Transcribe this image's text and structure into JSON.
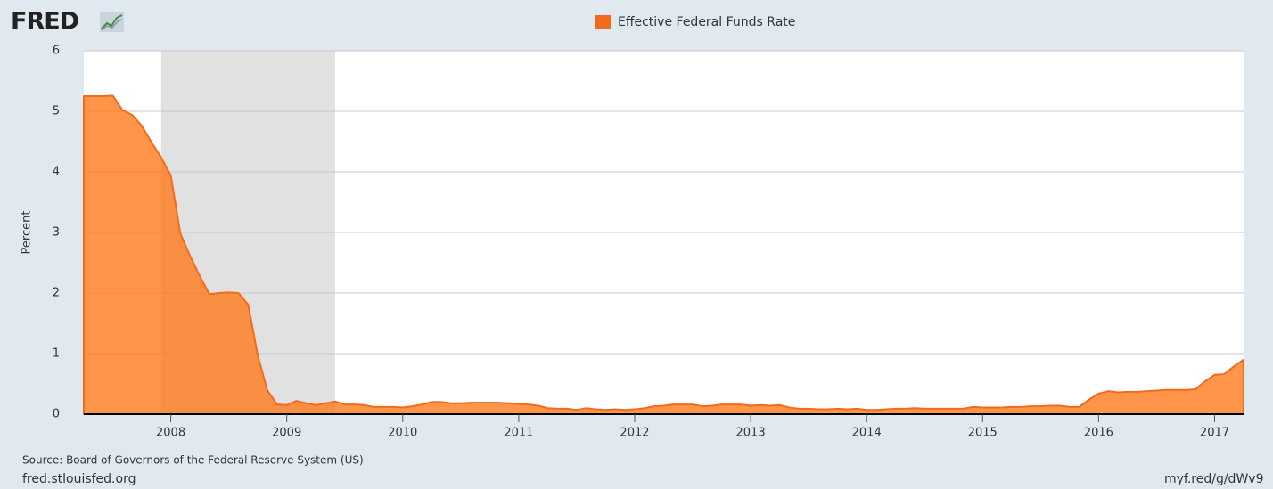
{
  "chart_data": {
    "type": "area",
    "logo": "FRED",
    "series": [
      {
        "name": "Effective Federal Funds Rate",
        "color": "#f26b1d",
        "x": [
          2007.25,
          2007.333,
          2007.417,
          2007.5,
          2007.583,
          2007.667,
          2007.75,
          2007.833,
          2007.917,
          2008,
          2008.083,
          2008.167,
          2008.25,
          2008.333,
          2008.417,
          2008.5,
          2008.583,
          2008.667,
          2008.75,
          2008.833,
          2008.917,
          2009,
          2009.083,
          2009.167,
          2009.25,
          2009.333,
          2009.417,
          2009.5,
          2009.583,
          2009.667,
          2009.75,
          2009.833,
          2009.917,
          2010,
          2010.083,
          2010.167,
          2010.25,
          2010.333,
          2010.417,
          2010.5,
          2010.583,
          2010.667,
          2010.75,
          2010.833,
          2010.917,
          2011,
          2011.083,
          2011.167,
          2011.25,
          2011.333,
          2011.417,
          2011.5,
          2011.583,
          2011.667,
          2011.75,
          2011.833,
          2011.917,
          2012,
          2012.083,
          2012.167,
          2012.25,
          2012.333,
          2012.417,
          2012.5,
          2012.583,
          2012.667,
          2012.75,
          2012.833,
          2012.917,
          2013,
          2013.083,
          2013.167,
          2013.25,
          2013.333,
          2013.417,
          2013.5,
          2013.583,
          2013.667,
          2013.75,
          2013.833,
          2013.917,
          2014,
          2014.083,
          2014.167,
          2014.25,
          2014.333,
          2014.417,
          2014.5,
          2014.583,
          2014.667,
          2014.75,
          2014.833,
          2014.917,
          2015,
          2015.083,
          2015.167,
          2015.25,
          2015.333,
          2015.417,
          2015.5,
          2015.583,
          2015.667,
          2015.75,
          2015.833,
          2015.917,
          2016,
          2016.083,
          2016.167,
          2016.25,
          2016.333,
          2016.417,
          2016.5,
          2016.583,
          2016.667,
          2016.75,
          2016.833,
          2016.917,
          2017,
          2017.083,
          2017.167,
          2017.25
        ],
        "values": [
          5.25,
          5.25,
          5.25,
          5.26,
          5.02,
          4.94,
          4.76,
          4.49,
          4.24,
          3.94,
          2.98,
          2.61,
          2.28,
          1.98,
          2.0,
          2.01,
          2.0,
          1.81,
          0.97,
          0.39,
          0.16,
          0.15,
          0.22,
          0.18,
          0.15,
          0.18,
          0.21,
          0.16,
          0.16,
          0.15,
          0.12,
          0.12,
          0.12,
          0.11,
          0.13,
          0.16,
          0.2,
          0.2,
          0.18,
          0.18,
          0.19,
          0.19,
          0.19,
          0.19,
          0.18,
          0.17,
          0.16,
          0.14,
          0.1,
          0.09,
          0.09,
          0.07,
          0.1,
          0.08,
          0.07,
          0.08,
          0.07,
          0.08,
          0.1,
          0.13,
          0.14,
          0.16,
          0.16,
          0.16,
          0.13,
          0.14,
          0.16,
          0.16,
          0.16,
          0.14,
          0.15,
          0.14,
          0.15,
          0.11,
          0.09,
          0.09,
          0.08,
          0.08,
          0.09,
          0.08,
          0.09,
          0.07,
          0.07,
          0.08,
          0.09,
          0.09,
          0.1,
          0.09,
          0.09,
          0.09,
          0.09,
          0.09,
          0.12,
          0.11,
          0.11,
          0.11,
          0.12,
          0.12,
          0.13,
          0.13,
          0.14,
          0.14,
          0.12,
          0.12,
          0.24,
          0.34,
          0.38,
          0.36,
          0.37,
          0.37,
          0.38,
          0.39,
          0.4,
          0.4,
          0.4,
          0.41,
          0.54,
          0.65,
          0.66,
          0.79,
          0.9
        ]
      }
    ],
    "recessions": [
      [
        2007.917,
        2009.417
      ]
    ],
    "y_label": "Percent",
    "xlim": [
      2007.25,
      2017.25
    ],
    "xticks": [
      2008,
      2009,
      2010,
      2011,
      2012,
      2013,
      2014,
      2015,
      2016,
      2017
    ],
    "ylim": [
      0,
      6
    ],
    "yticks": [
      0,
      1,
      2,
      3,
      4,
      5,
      6
    ],
    "grid": true,
    "source": "Source: Board of Governors of the Federal Reserve System (US)",
    "site": "fred.stlouisfed.org",
    "url": "myf.red/g/dWv9"
  }
}
